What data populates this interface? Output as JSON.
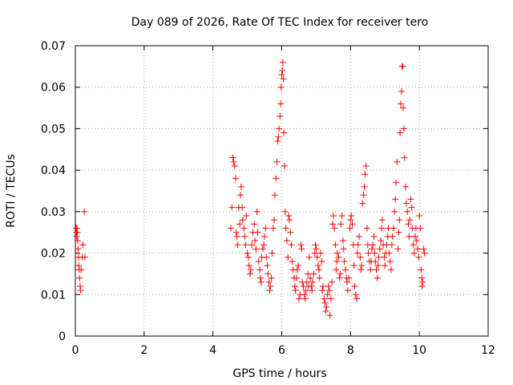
{
  "chart_data": {
    "type": "scatter",
    "title": "Day 089 of 2026, Rate Of TEC Index for receiver tero",
    "xlabel": "GPS time / hours",
    "ylabel": "ROTI / TECUs",
    "xlim": [
      0,
      12
    ],
    "ylim": [
      0,
      0.07
    ],
    "xticks": [
      "0",
      "2",
      "4",
      "6",
      "8",
      "10",
      "12"
    ],
    "yticks": [
      "0",
      "0.01",
      "0.02",
      "0.03",
      "0.04",
      "0.05",
      "0.06",
      "0.07"
    ],
    "grid": true,
    "marker": "plus",
    "color": "#ff0000",
    "series": [
      {
        "points": [
          [
            0.02,
            0.026
          ],
          [
            0.03,
            0.025
          ],
          [
            0.04,
            0.024
          ],
          [
            0.05,
            0.026
          ],
          [
            0.06,
            0.025
          ],
          [
            0.07,
            0.023
          ],
          [
            0.08,
            0.021
          ],
          [
            0.09,
            0.019
          ],
          [
            0.1,
            0.017
          ],
          [
            0.11,
            0.016
          ],
          [
            0.12,
            0.014
          ],
          [
            0.14,
            0.012
          ],
          [
            0.15,
            0.011
          ],
          [
            0.17,
            0.016
          ],
          [
            0.2,
            0.019
          ],
          [
            0.22,
            0.022
          ],
          [
            0.26,
            0.03
          ],
          [
            0.28,
            0.019
          ],
          [
            4.52,
            0.026
          ],
          [
            4.55,
            0.031
          ],
          [
            4.58,
            0.043
          ],
          [
            4.6,
            0.042
          ],
          [
            4.63,
            0.041
          ],
          [
            4.66,
            0.038
          ],
          [
            4.68,
            0.025
          ],
          [
            4.7,
            0.024
          ],
          [
            4.72,
            0.022
          ],
          [
            4.75,
            0.031
          ],
          [
            4.78,
            0.027
          ],
          [
            4.8,
            0.034
          ],
          [
            4.82,
            0.036
          ],
          [
            4.85,
            0.031
          ],
          [
            4.87,
            0.028
          ],
          [
            4.9,
            0.026
          ],
          [
            4.92,
            0.024
          ],
          [
            4.95,
            0.022
          ],
          [
            4.97,
            0.029
          ],
          [
            5.0,
            0.02
          ],
          [
            5.03,
            0.019
          ],
          [
            5.05,
            0.017
          ],
          [
            5.08,
            0.015
          ],
          [
            5.1,
            0.016
          ],
          [
            5.13,
            0.022
          ],
          [
            5.16,
            0.025
          ],
          [
            5.2,
            0.027
          ],
          [
            5.22,
            0.023
          ],
          [
            5.25,
            0.021
          ],
          [
            5.28,
            0.03
          ],
          [
            5.3,
            0.025
          ],
          [
            5.33,
            0.018
          ],
          [
            5.36,
            0.016
          ],
          [
            5.38,
            0.014
          ],
          [
            5.4,
            0.013
          ],
          [
            5.42,
            0.019
          ],
          [
            5.45,
            0.021
          ],
          [
            5.48,
            0.022
          ],
          [
            5.5,
            0.024
          ],
          [
            5.53,
            0.026
          ],
          [
            5.56,
            0.019
          ],
          [
            5.58,
            0.017
          ],
          [
            5.6,
            0.015
          ],
          [
            5.63,
            0.013
          ],
          [
            5.65,
            0.011
          ],
          [
            5.67,
            0.012
          ],
          [
            5.7,
            0.014
          ],
          [
            5.72,
            0.02
          ],
          [
            5.75,
            0.026
          ],
          [
            5.78,
            0.028
          ],
          [
            5.8,
            0.034
          ],
          [
            5.83,
            0.038
          ],
          [
            5.86,
            0.042
          ],
          [
            5.88,
            0.047
          ],
          [
            5.9,
            0.048
          ],
          [
            5.92,
            0.05
          ],
          [
            5.95,
            0.053
          ],
          [
            5.97,
            0.056
          ],
          [
            5.98,
            0.06
          ],
          [
            6.0,
            0.063
          ],
          [
            6.02,
            0.064
          ],
          [
            6.03,
            0.066
          ],
          [
            6.05,
            0.062
          ],
          [
            6.06,
            0.049
          ],
          [
            6.08,
            0.041
          ],
          [
            6.1,
            0.03
          ],
          [
            6.12,
            0.026
          ],
          [
            6.15,
            0.023
          ],
          [
            6.18,
            0.019
          ],
          [
            6.2,
            0.029
          ],
          [
            6.22,
            0.028
          ],
          [
            6.25,
            0.025
          ],
          [
            6.28,
            0.022
          ],
          [
            6.3,
            0.018
          ],
          [
            6.33,
            0.016
          ],
          [
            6.36,
            0.014
          ],
          [
            6.38,
            0.012
          ],
          [
            6.4,
            0.011
          ],
          [
            6.43,
            0.014
          ],
          [
            6.45,
            0.016
          ],
          [
            6.48,
            0.017
          ],
          [
            6.5,
            0.009
          ],
          [
            6.53,
            0.01
          ],
          [
            6.56,
            0.022
          ],
          [
            6.58,
            0.021
          ],
          [
            6.6,
            0.013
          ],
          [
            6.63,
            0.012
          ],
          [
            6.66,
            0.01
          ],
          [
            6.68,
            0.009
          ],
          [
            6.7,
            0.011
          ],
          [
            6.73,
            0.013
          ],
          [
            6.76,
            0.015
          ],
          [
            6.78,
            0.012
          ],
          [
            6.8,
            0.019
          ],
          [
            6.83,
            0.014
          ],
          [
            6.86,
            0.012
          ],
          [
            6.88,
            0.011
          ],
          [
            6.9,
            0.013
          ],
          [
            6.93,
            0.015
          ],
          [
            6.96,
            0.02
          ],
          [
            6.98,
            0.022
          ],
          [
            7.0,
            0.021
          ],
          [
            7.03,
            0.019
          ],
          [
            7.06,
            0.017
          ],
          [
            7.08,
            0.016
          ],
          [
            7.1,
            0.014
          ],
          [
            7.13,
            0.02
          ],
          [
            7.16,
            0.018
          ],
          [
            7.18,
            0.011
          ],
          [
            7.2,
            0.012
          ],
          [
            7.23,
            0.009
          ],
          [
            7.26,
            0.008
          ],
          [
            7.28,
            0.006
          ],
          [
            7.3,
            0.007
          ],
          [
            7.33,
            0.01
          ],
          [
            7.36,
            0.012
          ],
          [
            7.38,
            0.011
          ],
          [
            7.4,
            0.005
          ],
          [
            7.43,
            0.009
          ],
          [
            7.46,
            0.013
          ],
          [
            7.48,
            0.027
          ],
          [
            7.5,
            0.029
          ],
          [
            7.53,
            0.026
          ],
          [
            7.56,
            0.022
          ],
          [
            7.58,
            0.016
          ],
          [
            7.6,
            0.018
          ],
          [
            7.62,
            0.02
          ],
          [
            7.65,
            0.019
          ],
          [
            7.68,
            0.014
          ],
          [
            7.7,
            0.015
          ],
          [
            7.72,
            0.027
          ],
          [
            7.75,
            0.029
          ],
          [
            7.78,
            0.023
          ],
          [
            7.8,
            0.021
          ],
          [
            7.82,
            0.018
          ],
          [
            7.85,
            0.016
          ],
          [
            7.88,
            0.014
          ],
          [
            7.9,
            0.013
          ],
          [
            7.92,
            0.011
          ],
          [
            7.95,
            0.014
          ],
          [
            7.98,
            0.026
          ],
          [
            8.0,
            0.028
          ],
          [
            8.02,
            0.029
          ],
          [
            8.05,
            0.027
          ],
          [
            8.08,
            0.022
          ],
          [
            8.1,
            0.017
          ],
          [
            8.12,
            0.012
          ],
          [
            8.15,
            0.01
          ],
          [
            8.18,
            0.009
          ],
          [
            8.2,
            0.02
          ],
          [
            8.22,
            0.022
          ],
          [
            8.25,
            0.024
          ],
          [
            8.28,
            0.019
          ],
          [
            8.3,
            0.016
          ],
          [
            8.32,
            0.017
          ],
          [
            8.35,
            0.032
          ],
          [
            8.38,
            0.034
          ],
          [
            8.4,
            0.036
          ],
          [
            8.42,
            0.039
          ],
          [
            8.45,
            0.041
          ],
          [
            8.48,
            0.026
          ],
          [
            8.5,
            0.022
          ],
          [
            8.52,
            0.02
          ],
          [
            8.55,
            0.018
          ],
          [
            8.58,
            0.016
          ],
          [
            8.6,
            0.018
          ],
          [
            8.62,
            0.021
          ],
          [
            8.65,
            0.022
          ],
          [
            8.68,
            0.024
          ],
          [
            8.7,
            0.02
          ],
          [
            8.72,
            0.018
          ],
          [
            8.75,
            0.016
          ],
          [
            8.78,
            0.014
          ],
          [
            8.8,
            0.017
          ],
          [
            8.82,
            0.019
          ],
          [
            8.85,
            0.021
          ],
          [
            8.88,
            0.023
          ],
          [
            8.9,
            0.026
          ],
          [
            8.92,
            0.028
          ],
          [
            8.95,
            0.022
          ],
          [
            8.98,
            0.019
          ],
          [
            9.0,
            0.017
          ],
          [
            9.02,
            0.02
          ],
          [
            9.05,
            0.022
          ],
          [
            9.08,
            0.024
          ],
          [
            9.1,
            0.026
          ],
          [
            9.12,
            0.02
          ],
          [
            9.15,
            0.018
          ],
          [
            9.18,
            0.016
          ],
          [
            9.2,
            0.022
          ],
          [
            9.22,
            0.024
          ],
          [
            9.25,
            0.026
          ],
          [
            9.28,
            0.03
          ],
          [
            9.3,
            0.033
          ],
          [
            9.32,
            0.037
          ],
          [
            9.35,
            0.042
          ],
          [
            9.38,
            0.021
          ],
          [
            9.4,
            0.025
          ],
          [
            9.42,
            0.028
          ],
          [
            9.44,
            0.049
          ],
          [
            9.46,
            0.056
          ],
          [
            9.48,
            0.059
          ],
          [
            9.5,
            0.065
          ],
          [
            9.52,
            0.065
          ],
          [
            9.53,
            0.055
          ],
          [
            9.55,
            0.05
          ],
          [
            9.57,
            0.043
          ],
          [
            9.6,
            0.036
          ],
          [
            9.62,
            0.032
          ],
          [
            9.65,
            0.03
          ],
          [
            9.68,
            0.027
          ],
          [
            9.7,
            0.024
          ],
          [
            9.72,
            0.028
          ],
          [
            9.75,
            0.033
          ],
          [
            9.78,
            0.031
          ],
          [
            9.8,
            0.026
          ],
          [
            9.82,
            0.022
          ],
          [
            9.85,
            0.02
          ],
          [
            9.88,
            0.024
          ],
          [
            9.9,
            0.026
          ],
          [
            9.92,
            0.023
          ],
          [
            9.95,
            0.021
          ],
          [
            9.98,
            0.019
          ],
          [
            10.0,
            0.029
          ],
          [
            10.03,
            0.026
          ],
          [
            10.05,
            0.016
          ],
          [
            10.07,
            0.014
          ],
          [
            10.08,
            0.012
          ],
          [
            10.1,
            0.013
          ],
          [
            10.12,
            0.021
          ],
          [
            10.15,
            0.02
          ]
        ]
      }
    ]
  }
}
